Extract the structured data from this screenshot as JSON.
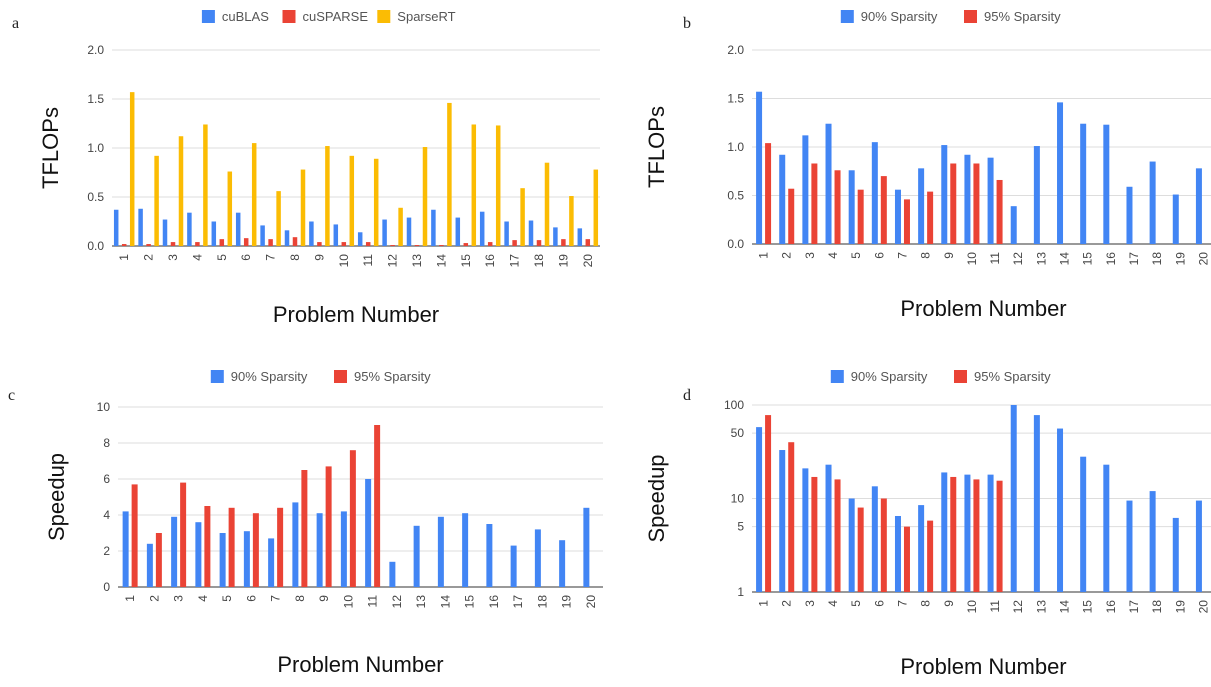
{
  "colors": {
    "blue": "#4285f4",
    "red": "#ea4335",
    "yellow": "#fbbc04"
  },
  "chart_data": [
    {
      "panel_label": "a",
      "type": "bar",
      "xlabel": "Problem Number",
      "ylabel": "TFLOPs",
      "categories": [
        "1",
        "2",
        "3",
        "4",
        "5",
        "6",
        "7",
        "8",
        "9",
        "10",
        "11",
        "12",
        "13",
        "14",
        "15",
        "16",
        "17",
        "18",
        "19",
        "20"
      ],
      "yticks": [
        "0.0",
        "0.5",
        "1.0",
        "1.5",
        "2.0"
      ],
      "ylim": [
        0,
        2
      ],
      "yscale": "linear",
      "grid": true,
      "legend_position": "top",
      "series": [
        {
          "name": "cuBLAS",
          "color": "#4285f4",
          "values": [
            0.37,
            0.38,
            0.27,
            0.34,
            0.25,
            0.34,
            0.21,
            0.16,
            0.25,
            0.22,
            0.14,
            0.27,
            0.29,
            0.37,
            0.29,
            0.35,
            0.25,
            0.26,
            0.19,
            0.18
          ]
        },
        {
          "name": "cuSPARSE",
          "color": "#ea4335",
          "values": [
            0.02,
            0.02,
            0.04,
            0.04,
            0.07,
            0.08,
            0.07,
            0.09,
            0.04,
            0.04,
            0.04,
            0.01,
            0.01,
            0.01,
            0.03,
            0.04,
            0.06,
            0.06,
            0.07,
            0.07
          ]
        },
        {
          "name": "SparseRT",
          "color": "#fbbc04",
          "values": [
            1.57,
            0.92,
            1.12,
            1.24,
            0.76,
            1.05,
            0.56,
            0.78,
            1.02,
            0.92,
            0.89,
            0.39,
            1.01,
            1.46,
            1.24,
            1.23,
            0.59,
            0.85,
            0.51,
            0.78
          ]
        }
      ]
    },
    {
      "panel_label": "b",
      "type": "bar",
      "xlabel": "Problem Number",
      "ylabel": "TFLOPs",
      "categories": [
        "1",
        "2",
        "3",
        "4",
        "5",
        "6",
        "7",
        "8",
        "9",
        "10",
        "11",
        "12",
        "13",
        "14",
        "15",
        "16",
        "17",
        "18",
        "19",
        "20"
      ],
      "yticks": [
        "0.0",
        "0.5",
        "1.0",
        "1.5",
        "2.0"
      ],
      "ylim": [
        0,
        2
      ],
      "yscale": "linear",
      "grid": true,
      "legend_position": "top",
      "series": [
        {
          "name": "90% Sparsity",
          "color": "#4285f4",
          "values": [
            1.57,
            0.92,
            1.12,
            1.24,
            0.76,
            1.05,
            0.56,
            0.78,
            1.02,
            0.92,
            0.89,
            0.39,
            1.01,
            1.46,
            1.24,
            1.23,
            0.59,
            0.85,
            0.51,
            0.78
          ]
        },
        {
          "name": "95% Sparsity",
          "color": "#ea4335",
          "values": [
            1.04,
            0.57,
            0.83,
            0.76,
            0.56,
            0.7,
            0.46,
            0.54,
            0.83,
            0.83,
            0.66,
            null,
            null,
            null,
            null,
            null,
            null,
            null,
            null,
            null
          ]
        }
      ]
    },
    {
      "panel_label": "c",
      "type": "bar",
      "xlabel": "Problem Number",
      "ylabel": "Speedup",
      "categories": [
        "1",
        "2",
        "3",
        "4",
        "5",
        "6",
        "7",
        "8",
        "9",
        "10",
        "11",
        "12",
        "13",
        "14",
        "15",
        "16",
        "17",
        "18",
        "19",
        "20"
      ],
      "yticks": [
        "0",
        "2",
        "4",
        "6",
        "8",
        "10"
      ],
      "ylim": [
        0,
        10
      ],
      "yscale": "linear",
      "grid": true,
      "legend_position": "top",
      "series": [
        {
          "name": "90% Sparsity",
          "color": "#4285f4",
          "values": [
            4.2,
            2.4,
            3.9,
            3.6,
            3.0,
            3.1,
            2.7,
            4.7,
            4.1,
            4.2,
            6.0,
            1.4,
            3.4,
            3.9,
            4.1,
            3.5,
            2.3,
            3.2,
            2.6,
            4.4
          ]
        },
        {
          "name": "95% Sparsity",
          "color": "#ea4335",
          "values": [
            5.7,
            3.0,
            5.8,
            4.5,
            4.4,
            4.1,
            4.4,
            6.5,
            6.7,
            7.6,
            9.0,
            null,
            null,
            null,
            null,
            null,
            null,
            null,
            null,
            null
          ]
        }
      ]
    },
    {
      "panel_label": "d",
      "type": "bar",
      "xlabel": "Problem Number",
      "ylabel": "Speedup",
      "categories": [
        "1",
        "2",
        "3",
        "4",
        "5",
        "6",
        "7",
        "8",
        "9",
        "10",
        "11",
        "12",
        "13",
        "14",
        "15",
        "16",
        "17",
        "18",
        "19",
        "20"
      ],
      "yticks": [
        "1",
        "5",
        "10",
        "50",
        "100"
      ],
      "ylim": [
        1,
        100
      ],
      "yscale": "log",
      "grid": true,
      "legend_position": "top",
      "series": [
        {
          "name": "90% Sparsity",
          "color": "#4285f4",
          "values": [
            58,
            33,
            21,
            23,
            10,
            13.5,
            6.5,
            8.5,
            19,
            18,
            18,
            100,
            78,
            56,
            28,
            23,
            9.5,
            12,
            6.2,
            9.5
          ]
        },
        {
          "name": "95% Sparsity",
          "color": "#ea4335",
          "values": [
            78,
            40,
            17,
            16,
            8,
            10,
            5,
            5.8,
            17,
            16,
            15.5,
            null,
            null,
            null,
            null,
            null,
            null,
            null,
            null,
            null
          ]
        }
      ]
    }
  ]
}
